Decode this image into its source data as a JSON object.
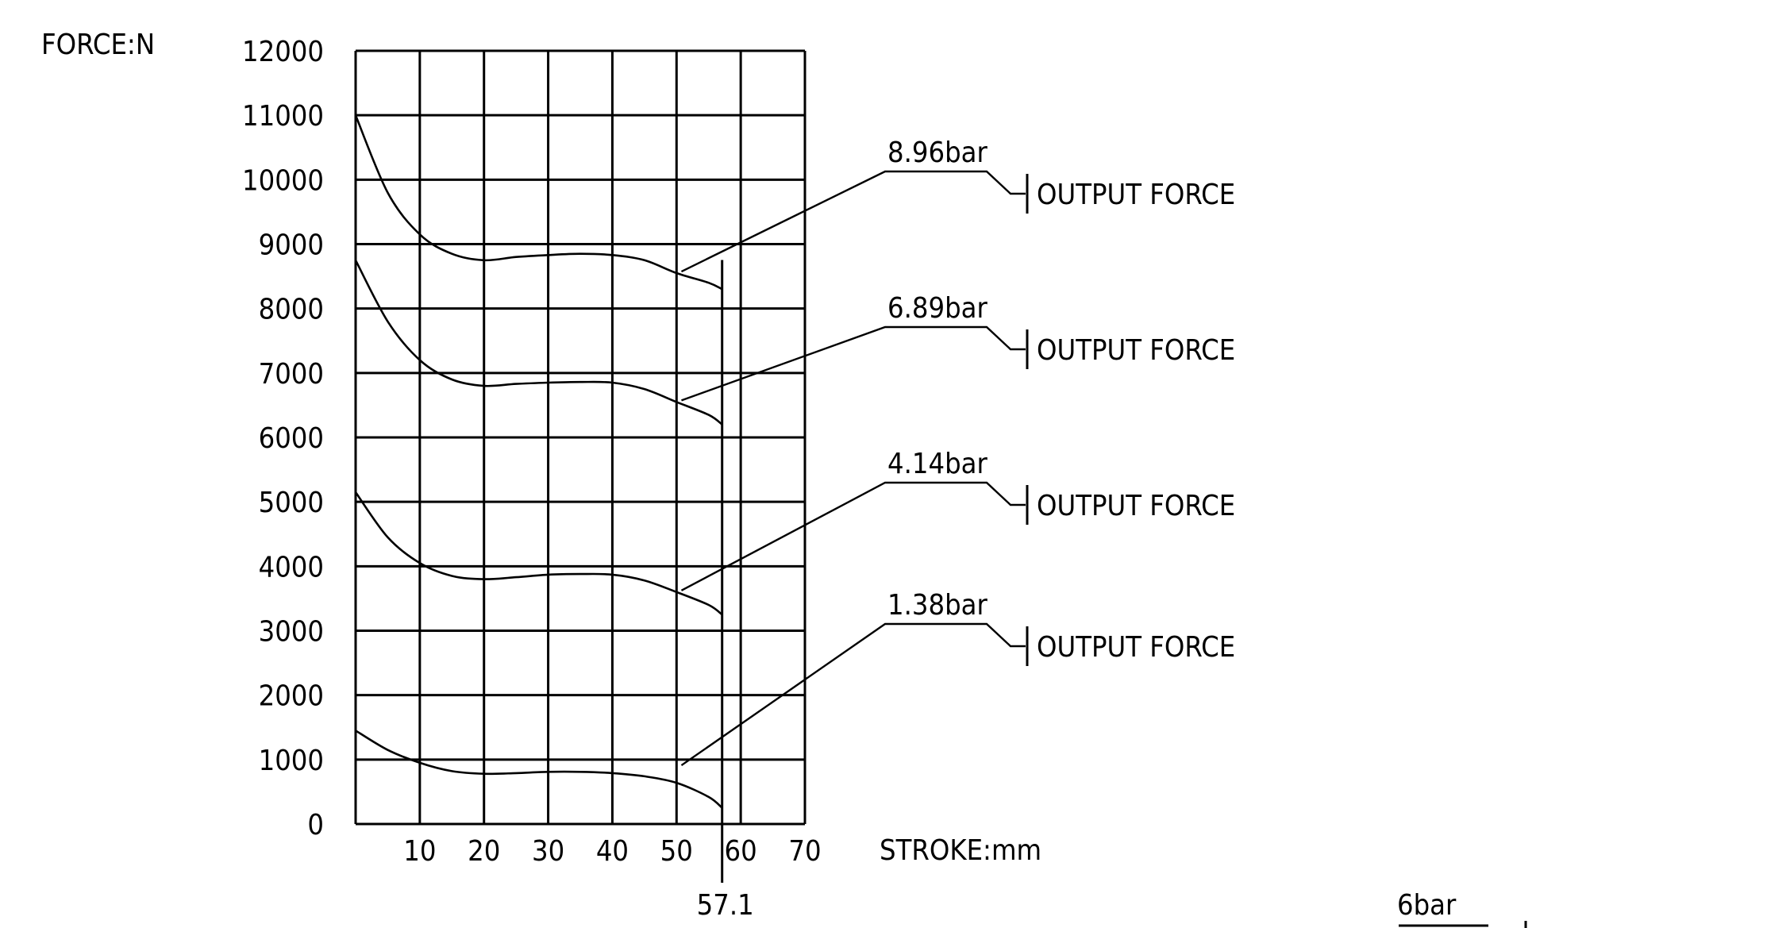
{
  "chart_data": {
    "type": "line",
    "ylabel": "FORCE:N",
    "xlabel": "STROKE:mm",
    "xlim": [
      0,
      70
    ],
    "ylim": [
      0,
      12000
    ],
    "x_ticks": [
      10,
      20,
      30,
      40,
      50,
      60,
      70
    ],
    "y_ticks": [
      0,
      1000,
      2000,
      3000,
      4000,
      5000,
      6000,
      7000,
      8000,
      9000,
      10000,
      11000,
      12000
    ],
    "grid": true,
    "stroke_marker": {
      "x": 57.1,
      "label": "57.1"
    },
    "series": [
      {
        "name": "8.96bar",
        "callout_text": "OUTPUT FORCE",
        "x": [
          0,
          5,
          10,
          15,
          20,
          25,
          30,
          35,
          40,
          45,
          50,
          55,
          57.1
        ],
        "values": [
          11000,
          9800,
          9150,
          8850,
          8750,
          8800,
          8830,
          8850,
          8830,
          8750,
          8550,
          8400,
          8300
        ]
      },
      {
        "name": "6.89bar",
        "callout_text": "OUTPUT FORCE",
        "x": [
          0,
          5,
          10,
          15,
          20,
          25,
          30,
          35,
          40,
          45,
          50,
          55,
          57.1
        ],
        "values": [
          8750,
          7800,
          7200,
          6900,
          6800,
          6830,
          6850,
          6860,
          6850,
          6750,
          6550,
          6350,
          6200
        ]
      },
      {
        "name": "4.14bar",
        "callout_text": "OUTPUT FORCE",
        "x": [
          0,
          5,
          10,
          15,
          20,
          25,
          30,
          35,
          40,
          45,
          50,
          55,
          57.1
        ],
        "values": [
          5150,
          4450,
          4050,
          3850,
          3800,
          3830,
          3870,
          3880,
          3870,
          3780,
          3600,
          3400,
          3250
        ]
      },
      {
        "name": "1.38bar",
        "callout_text": "OUTPUT FORCE",
        "x": [
          0,
          5,
          10,
          15,
          20,
          25,
          30,
          35,
          40,
          45,
          50,
          55,
          57.1
        ],
        "values": [
          1450,
          1150,
          950,
          820,
          780,
          790,
          810,
          810,
          790,
          740,
          640,
          420,
          250
        ]
      }
    ]
  },
  "footer": {
    "partial_label": "6bar"
  }
}
